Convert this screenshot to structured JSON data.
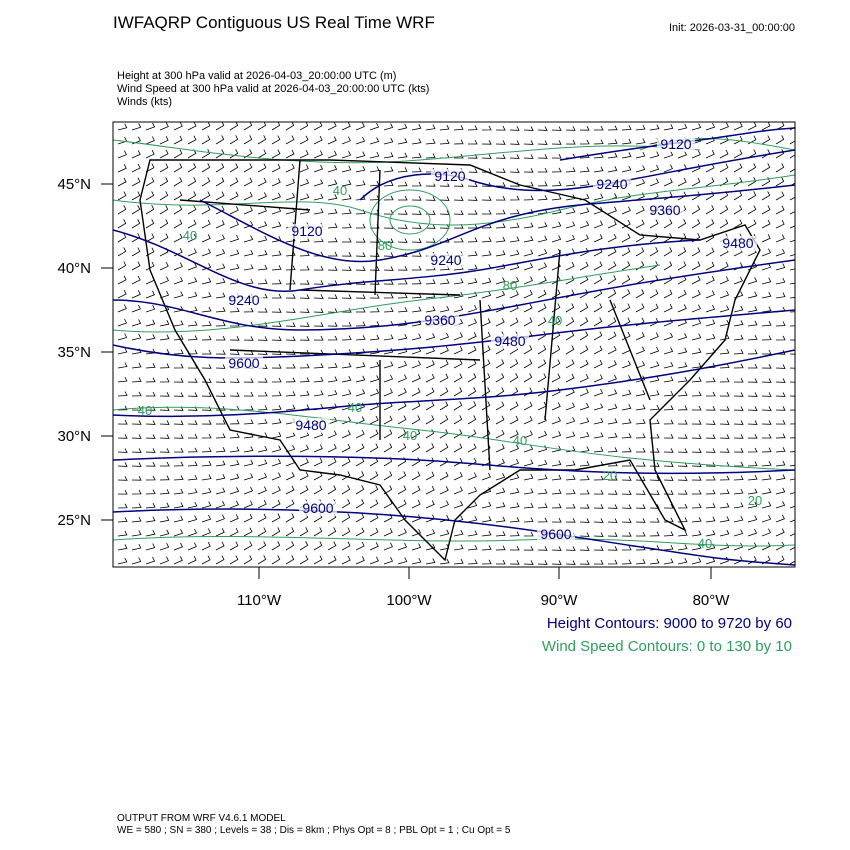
{
  "header": {
    "title": "IWFAQRP Contiguous US Real Time WRF",
    "init": "Init: 2026-03-31_00:00:00",
    "fields": [
      "Height at 300 hPa valid at 2026-04-03_20:00:00 UTC   (m)",
      "Wind Speed at 300 hPa valid at 2026-04-03_20:00:00 UTC   (kts)",
      "Winds   (kts)"
    ]
  },
  "map": {
    "lat_labels": [
      "45°N",
      "40°N",
      "35°N",
      "30°N",
      "25°N"
    ],
    "lon_labels": [
      "110°W",
      "100°W",
      "90°W",
      "80°W"
    ],
    "height_labels": [
      "9120",
      "9120",
      "9240",
      "9360",
      "9480",
      "9120",
      "9240",
      "9240",
      "9360",
      "9480",
      "9600",
      "9480",
      "9600",
      "9600"
    ],
    "speed_labels": [
      "40",
      "80",
      "40",
      "80",
      "40",
      "40",
      "40",
      "40",
      "40",
      "20",
      "20",
      "40"
    ]
  },
  "legend": {
    "height": "Height Contours: 9000 to 9720 by 60",
    "speed": "Wind Speed Contours: 0 to 130 by 10"
  },
  "footer": [
    "OUTPUT FROM WRF V4.6.1 MODEL",
    "WE = 580 ; SN = 380 ; Levels = 38 ; Dis = 8km ; Phys Opt = 8 ; PBL Opt = 1 ; Cu Opt = 5"
  ]
}
